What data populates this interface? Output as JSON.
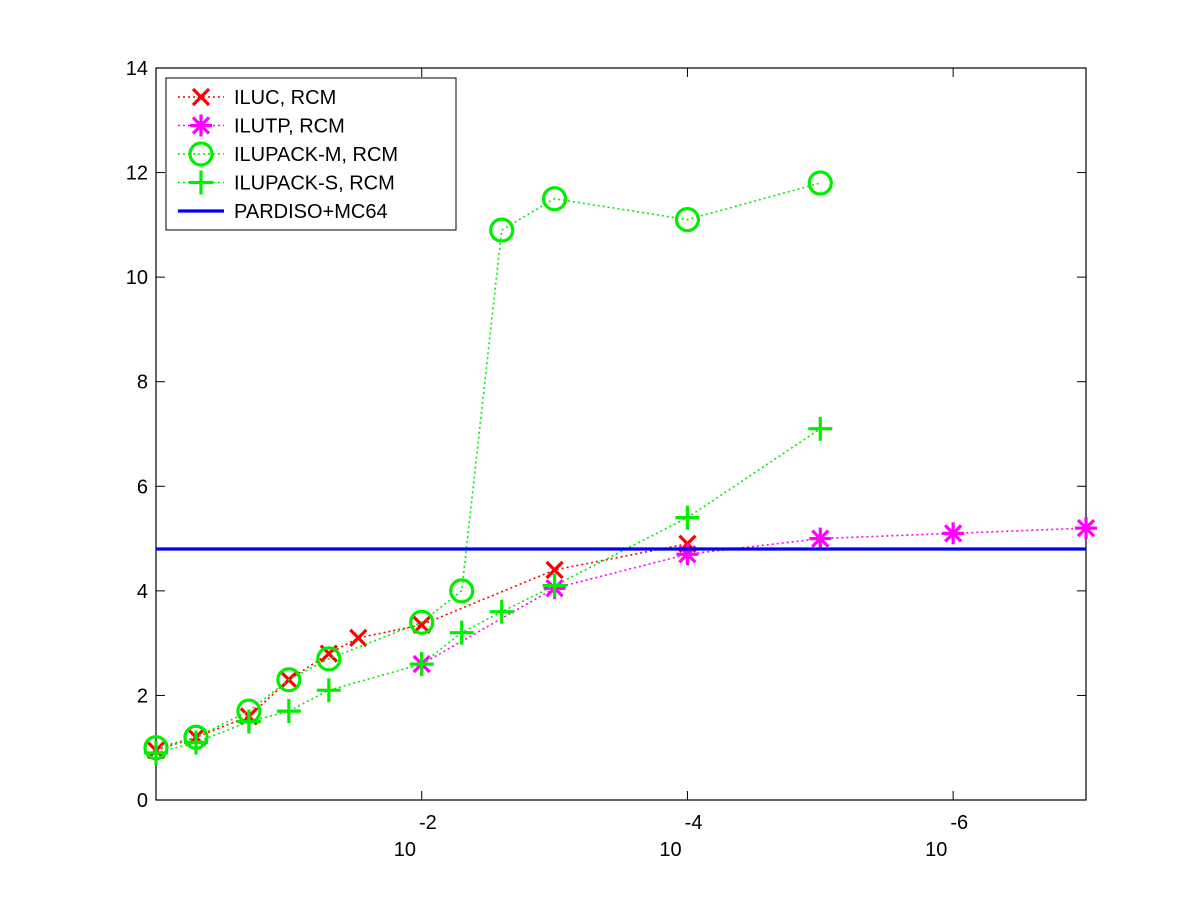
{
  "chart_data": {
    "type": "line",
    "title": "",
    "xlabel": "",
    "ylabel": "",
    "x_scale": "log",
    "x_direction": "reversed",
    "xlim": [
      1,
      1e-07
    ],
    "ylim": [
      0,
      14
    ],
    "x_ticks": [
      {
        "value": 0.01,
        "base": "10",
        "exp": "-2"
      },
      {
        "value": 0.0001,
        "base": "10",
        "exp": "-4"
      },
      {
        "value": 1e-06,
        "base": "10",
        "exp": "-6"
      }
    ],
    "y_ticks": [
      "0",
      "2",
      "4",
      "6",
      "8",
      "10",
      "12",
      "14"
    ],
    "grid": false,
    "legend_position": "top-left",
    "series": [
      {
        "name": "ILUC, RCM",
        "color": "#ff0000",
        "marker": "x",
        "linestyle": "dotted",
        "x": [
          1,
          0.5,
          0.2,
          0.1,
          0.05,
          0.03,
          0.01,
          0.001,
          0.0001
        ],
        "y": [
          0.95,
          1.2,
          1.6,
          2.3,
          2.8,
          3.1,
          3.35,
          4.4,
          4.9
        ]
      },
      {
        "name": "ILUTP, RCM",
        "color": "#ff00ff",
        "marker": "asterisk",
        "linestyle": "dotted",
        "x": [
          0.01,
          0.001,
          0.0001,
          1e-05,
          1e-06,
          1e-07
        ],
        "y": [
          2.6,
          4.05,
          4.7,
          5.0,
          5.1,
          5.2
        ]
      },
      {
        "name": "ILUPACK-M, RCM",
        "color": "#00ee00",
        "marker": "circle",
        "linestyle": "dotted",
        "x": [
          1,
          0.5,
          0.2,
          0.1,
          0.05,
          0.01,
          0.005,
          0.0025,
          0.001,
          0.0001,
          1e-05
        ],
        "y": [
          1.0,
          1.2,
          1.7,
          2.3,
          2.7,
          3.4,
          4.0,
          10.9,
          11.5,
          11.1,
          11.8
        ]
      },
      {
        "name": "ILUPACK-S, RCM",
        "color": "#00ee00",
        "marker": "plus",
        "linestyle": "dotted",
        "x": [
          1,
          0.5,
          0.2,
          0.1,
          0.05,
          0.01,
          0.005,
          0.0025,
          0.001,
          0.0001,
          1e-05
        ],
        "y": [
          0.9,
          1.1,
          1.5,
          1.7,
          2.1,
          2.6,
          3.2,
          3.6,
          4.1,
          5.4,
          7.1
        ]
      },
      {
        "name": "PARDISO+MC64",
        "color": "#0000ff",
        "marker": "none",
        "linestyle": "solid",
        "x": [
          1,
          1e-07
        ],
        "y": [
          4.8,
          4.8
        ]
      }
    ]
  }
}
